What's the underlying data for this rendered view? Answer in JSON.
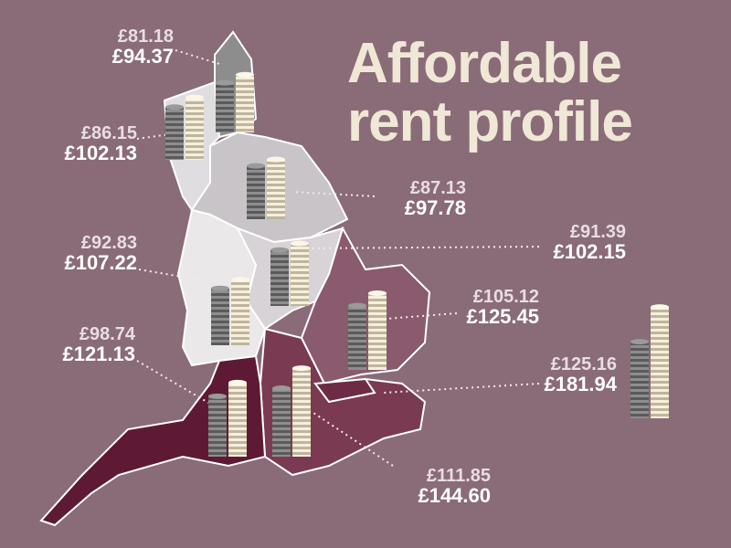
{
  "title": "Affordable rent profile",
  "regions": [
    {
      "values": [
        81.18,
        94.37
      ],
      "value_labels": [
        "£81.18",
        "£94.37"
      ]
    },
    {
      "values": [
        86.15,
        102.13
      ],
      "value_labels": [
        "£86.15",
        "£102.13"
      ]
    },
    {
      "values": [
        87.13,
        97.78
      ],
      "value_labels": [
        "£87.13",
        "£97.78"
      ]
    },
    {
      "values": [
        91.39,
        102.15
      ],
      "value_labels": [
        "£91.39",
        "£102.15"
      ]
    },
    {
      "values": [
        92.83,
        107.22
      ],
      "value_labels": [
        "£92.83",
        "£107.22"
      ]
    },
    {
      "values": [
        105.12,
        125.45
      ],
      "value_labels": [
        "£105.12",
        "£125.45"
      ]
    },
    {
      "values": [
        125.16,
        181.94
      ],
      "value_labels": [
        "£125.16",
        "£181.94"
      ]
    },
    {
      "values": [
        98.74,
        121.13
      ],
      "value_labels": [
        "£98.74",
        "£121.13"
      ]
    },
    {
      "values": [
        111.85,
        144.6
      ],
      "value_labels": [
        "£111.85",
        "£144.60"
      ]
    }
  ]
}
